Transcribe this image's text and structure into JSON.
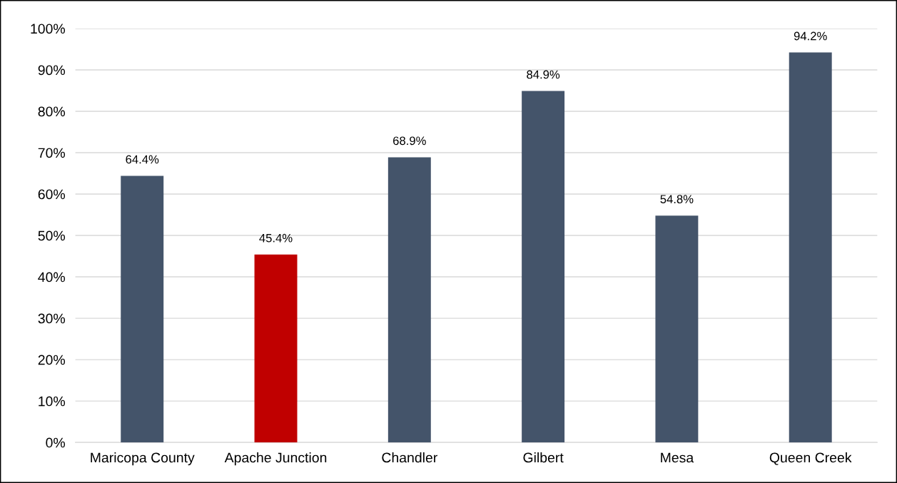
{
  "chart_data": {
    "type": "bar",
    "categories": [
      "Maricopa County",
      "Apache Junction",
      "Chandler",
      "Gilbert",
      "Mesa",
      "Queen Creek"
    ],
    "values": [
      64.4,
      45.4,
      68.9,
      84.9,
      54.8,
      94.2
    ],
    "colors": [
      "#44546a",
      "#c00000",
      "#44546a",
      "#44546a",
      "#44546a",
      "#44546a"
    ],
    "value_labels": [
      "64.4%",
      "45.4%",
      "68.9%",
      "84.9%",
      "54.8%",
      "94.2%"
    ],
    "ylim": [
      0,
      100
    ],
    "yticks": [
      {
        "value": 0,
        "label": "0%"
      },
      {
        "value": 10,
        "label": "10%"
      },
      {
        "value": 20,
        "label": "20%"
      },
      {
        "value": 30,
        "label": "30%"
      },
      {
        "value": 40,
        "label": "40%"
      },
      {
        "value": 50,
        "label": "50%"
      },
      {
        "value": 60,
        "label": "60%"
      },
      {
        "value": 70,
        "label": "70%"
      },
      {
        "value": 80,
        "label": "80%"
      },
      {
        "value": 90,
        "label": "90%"
      },
      {
        "value": 100,
        "label": "100%"
      }
    ],
    "grid": "y"
  }
}
